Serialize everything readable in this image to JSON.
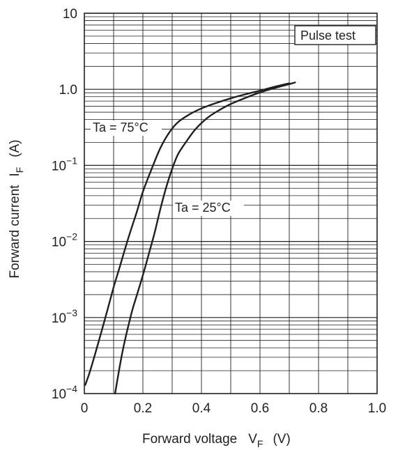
{
  "chart_data": {
    "type": "line",
    "xlabel": "Forward voltage",
    "xsymbol": "V",
    "xsub": "F",
    "xunit": "(V)",
    "ylabel": "Forward current",
    "ysymbol": "I",
    "ysub": "F",
    "yunit": "(A)",
    "x_scale": "linear",
    "y_scale": "log",
    "xlim": [
      0,
      1.0
    ],
    "ylim": [
      0.0001,
      10
    ],
    "grid": true,
    "x_ticks": [
      {
        "value": 0,
        "label": "0"
      },
      {
        "value": 0.2,
        "label": "0.2"
      },
      {
        "value": 0.4,
        "label": "0.4"
      },
      {
        "value": 0.6,
        "label": "0.6"
      },
      {
        "value": 0.8,
        "label": "0.8"
      },
      {
        "value": 1.0,
        "label": "1.0"
      }
    ],
    "y_ticks": [
      {
        "value": 10,
        "base": "10",
        "exp": ""
      },
      {
        "value": 1,
        "base": "1.0",
        "exp": ""
      },
      {
        "value": 0.1,
        "base": "10",
        "exp": "−1"
      },
      {
        "value": 0.01,
        "base": "10",
        "exp": "−2"
      },
      {
        "value": 0.001,
        "base": "10",
        "exp": "−3"
      },
      {
        "value": 0.0001,
        "base": "10",
        "exp": "−4"
      }
    ],
    "annotation": "Pulse test",
    "series": [
      {
        "name": "Ta = 75°C",
        "x": [
          0.003,
          0.02,
          0.05,
          0.08,
          0.1,
          0.12,
          0.15,
          0.18,
          0.2,
          0.23,
          0.26,
          0.29,
          0.32,
          0.36,
          0.4,
          0.45,
          0.5,
          0.55,
          0.6,
          0.65,
          0.7
        ],
        "y": [
          0.00013,
          0.0002,
          0.0005,
          0.0013,
          0.0025,
          0.0045,
          0.011,
          0.025,
          0.045,
          0.09,
          0.17,
          0.27,
          0.37,
          0.47,
          0.56,
          0.66,
          0.76,
          0.86,
          0.96,
          1.08,
          1.2
        ]
      },
      {
        "name": "Ta = 25°C",
        "x": [
          0.105,
          0.13,
          0.16,
          0.18,
          0.2,
          0.22,
          0.24,
          0.26,
          0.28,
          0.3,
          0.32,
          0.35,
          0.38,
          0.42,
          0.46,
          0.5,
          0.55,
          0.6,
          0.65,
          0.7,
          0.72
        ],
        "y": [
          0.0001,
          0.00035,
          0.0011,
          0.002,
          0.0036,
          0.0068,
          0.013,
          0.027,
          0.052,
          0.09,
          0.14,
          0.21,
          0.3,
          0.42,
          0.53,
          0.64,
          0.77,
          0.91,
          1.04,
          1.17,
          1.23
        ]
      }
    ]
  }
}
